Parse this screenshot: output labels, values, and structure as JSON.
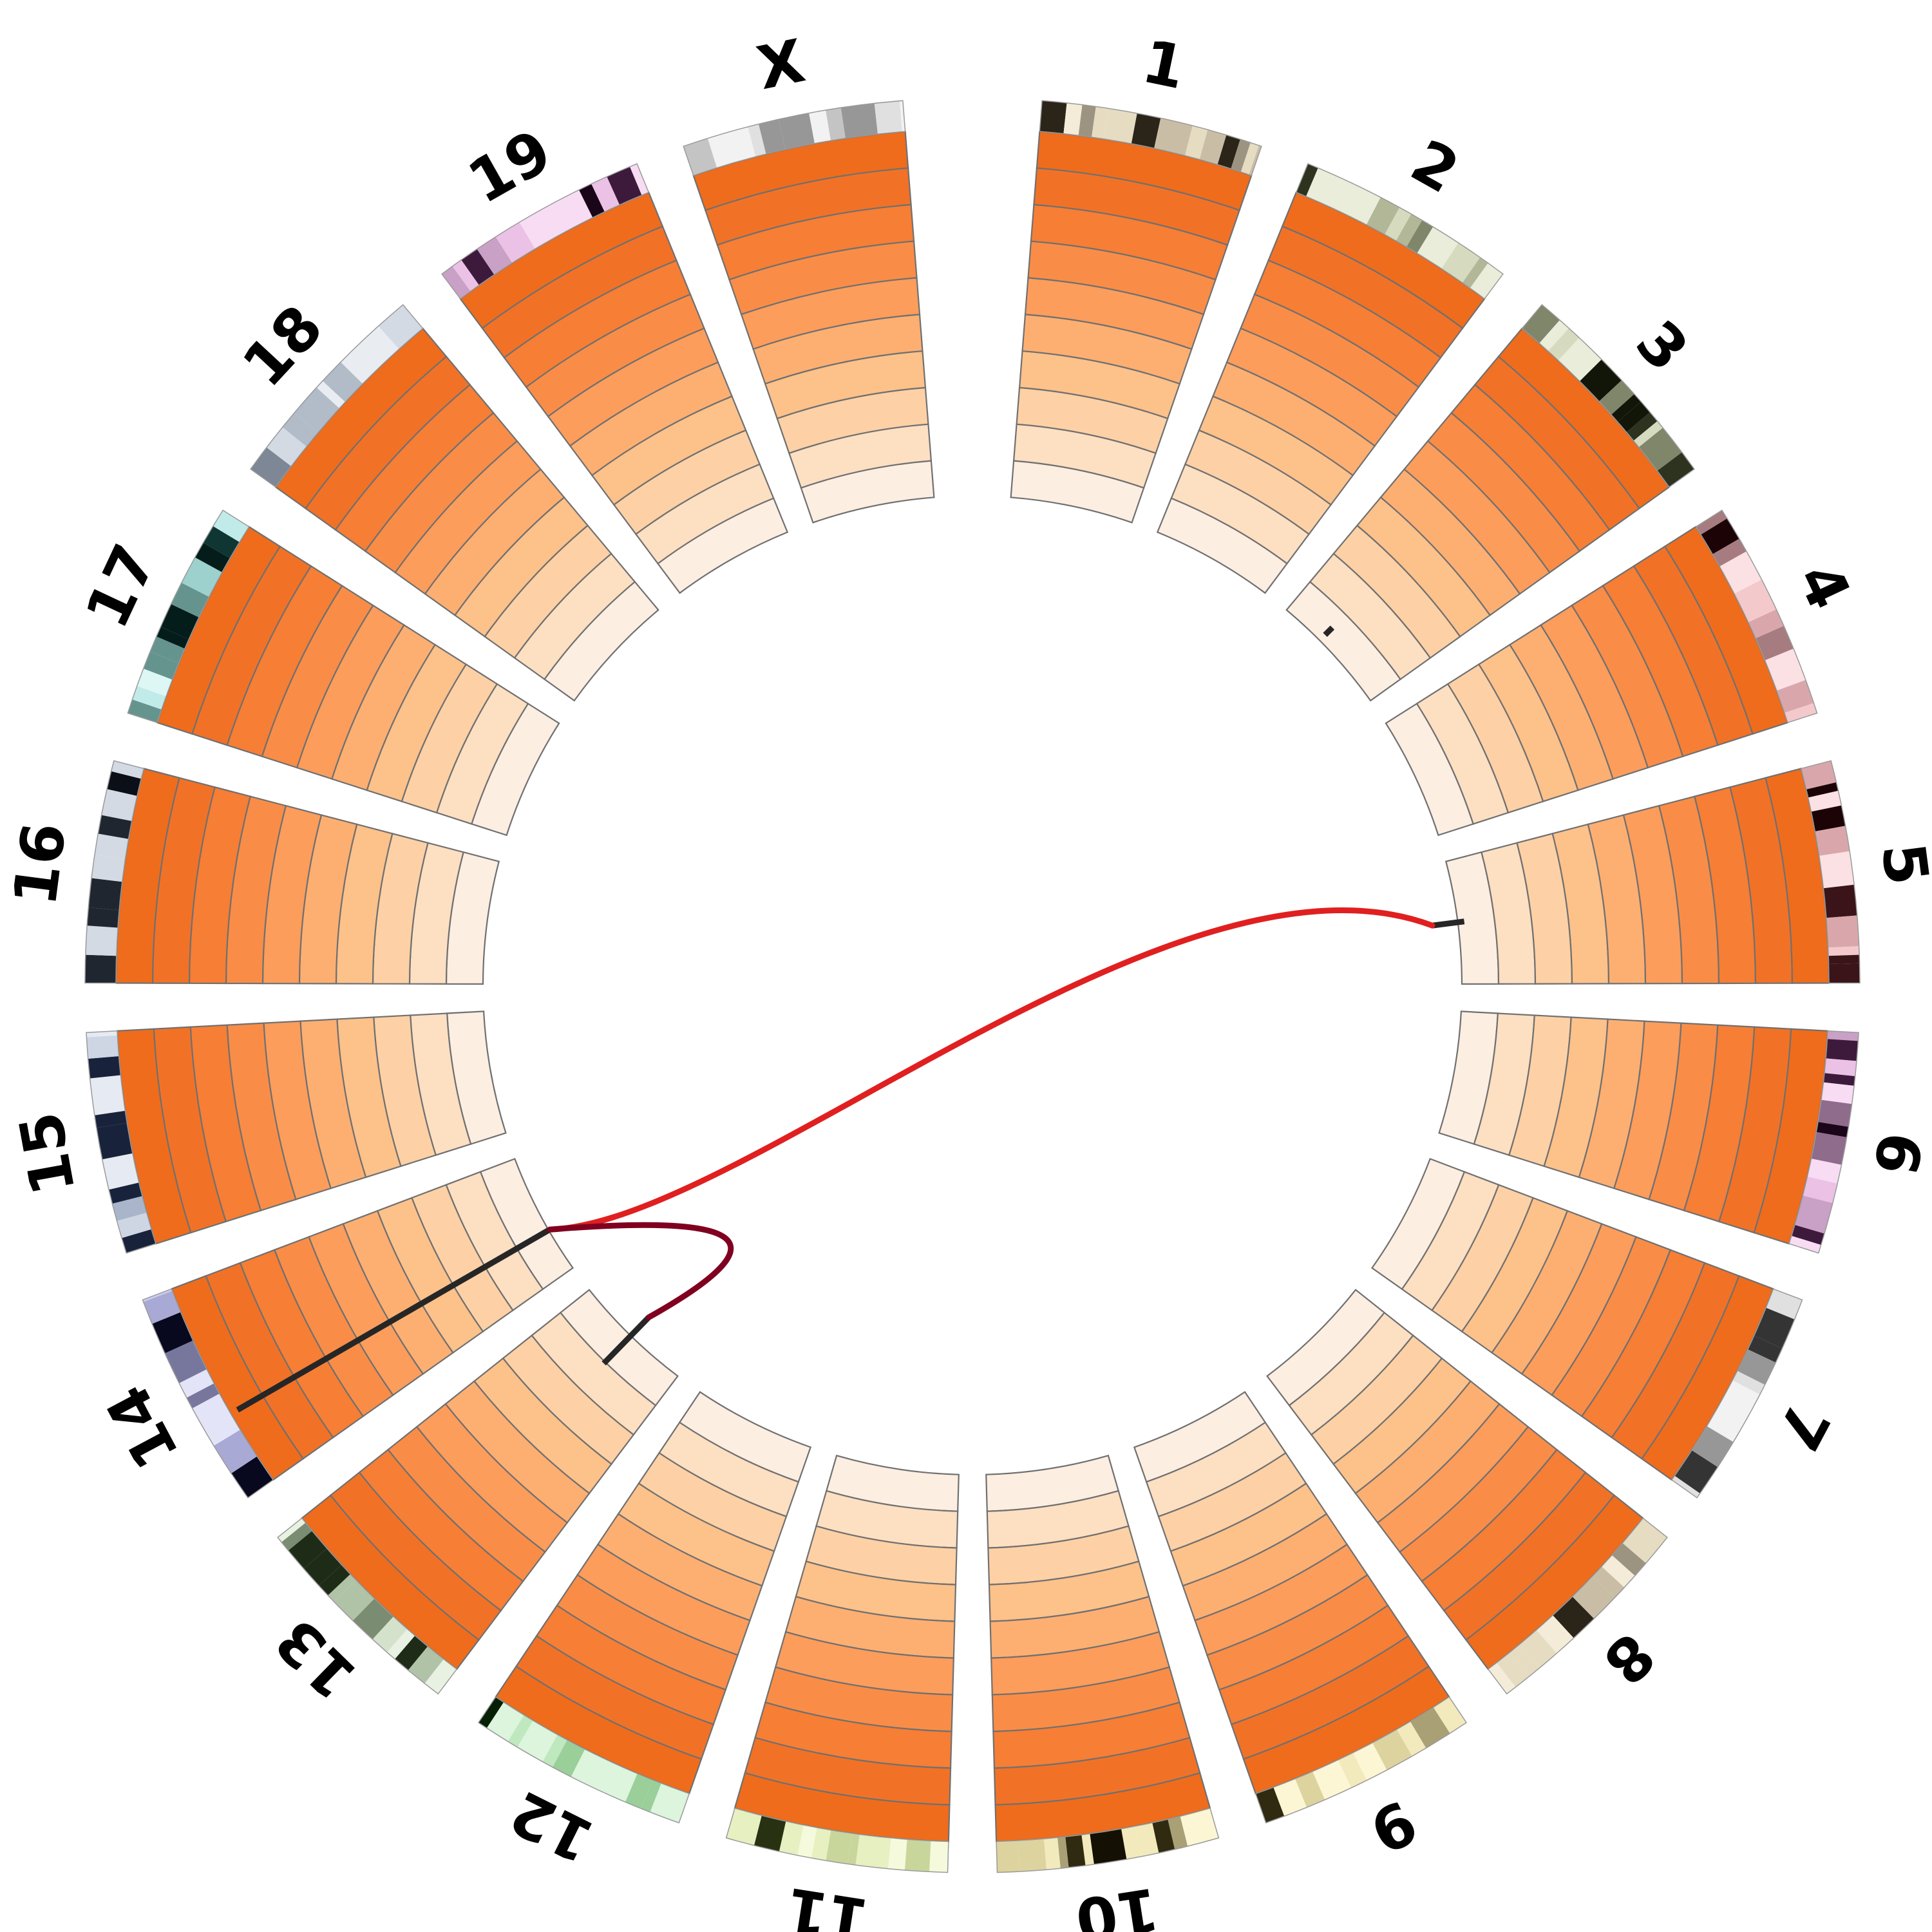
{
  "chromosomes": [
    {
      "id": "chr1",
      "label": "1",
      "palette": "beige"
    },
    {
      "id": "chr2",
      "label": "2",
      "palette": "olive"
    },
    {
      "id": "chr3",
      "label": "3",
      "palette": "olive"
    },
    {
      "id": "chr4",
      "label": "4",
      "palette": "rose"
    },
    {
      "id": "chr5",
      "label": "5",
      "palette": "rose"
    },
    {
      "id": "chr6",
      "label": "6",
      "palette": "violet"
    },
    {
      "id": "chr7",
      "label": "7",
      "palette": "grey"
    },
    {
      "id": "chr8",
      "label": "8",
      "palette": "beige"
    },
    {
      "id": "chr9",
      "label": "9",
      "palette": "cream"
    },
    {
      "id": "chr10",
      "label": "10",
      "palette": "cream"
    },
    {
      "id": "chr11",
      "label": "11",
      "palette": "lime"
    },
    {
      "id": "chr12",
      "label": "12",
      "palette": "green"
    },
    {
      "id": "chr13",
      "label": "13",
      "palette": "sage"
    },
    {
      "id": "chr14",
      "label": "14",
      "palette": "lavender"
    },
    {
      "id": "chr15",
      "label": "15",
      "palette": "navy"
    },
    {
      "id": "chr16",
      "label": "16",
      "palette": "slate"
    },
    {
      "id": "chr17",
      "label": "17",
      "palette": "teal"
    },
    {
      "id": "chr18",
      "label": "18",
      "palette": "slate"
    },
    {
      "id": "chr19",
      "label": "19",
      "palette": "violet"
    },
    {
      "id": "chrX",
      "label": "X",
      "palette": "grey"
    }
  ],
  "colors": {
    "heat_rings": [
      "#fdeee2",
      "#fddfc2",
      "#fdd1a5",
      "#fdc18a",
      "#fdaf72",
      "#fc9d5c",
      "#f98d47",
      "#f67e35",
      "#f17227",
      "#ef6c1c"
    ],
    "ring_border": "#707070",
    "palettes": {
      "beige": [
        "#f4ecd8",
        "#e6dcc2",
        "#c9bea5",
        "#9c9480",
        "#2b2418",
        "#140f08"
      ],
      "olive": [
        "#eaedda",
        "#d6dbbf",
        "#b2b897",
        "#80866a",
        "#2e3320",
        "#121608"
      ],
      "rose": [
        "#fbe1e3",
        "#f3c9cc",
        "#d9a7ab",
        "#a77c80",
        "#3a1418",
        "#1c0406"
      ],
      "violet": [
        "#f7dcf3",
        "#ebc1e6",
        "#c9a0c6",
        "#8f6b8c",
        "#3d1a3b",
        "#1a0519"
      ],
      "grey": [
        "#f2f2f2",
        "#e0e0e0",
        "#c4c4c4",
        "#979797",
        "#343434",
        "#151515"
      ],
      "cream": [
        "#fcf6d4",
        "#f2eabc",
        "#ddd39e",
        "#a9a075",
        "#2f2a10",
        "#141003"
      ],
      "lime": [
        "#f5fadc",
        "#e6f0c0",
        "#c8d69c",
        "#8e9c65",
        "#283212",
        "#101805"
      ],
      "green": [
        "#dcf5dc",
        "#bfe8bf",
        "#9acf9a",
        "#5f915f",
        "#143a14",
        "#062006"
      ],
      "sage": [
        "#e9f2e2",
        "#d4e2cb",
        "#b1c3a7",
        "#7a8c71",
        "#1e2c17",
        "#0a1506"
      ],
      "lavender": [
        "#e4e4f8",
        "#cdcdef",
        "#a9a9d5",
        "#77779e",
        "#1c1c3c",
        "#08081e"
      ],
      "navy": [
        "#e6eaf2",
        "#ced6e4",
        "#a9b5ca",
        "#74839c",
        "#18223a",
        "#070d1e"
      ],
      "slate": [
        "#e9edf2",
        "#d3dae3",
        "#b2bbc8",
        "#7d8795",
        "#1f2630",
        "#0b1018"
      ],
      "teal": [
        "#ddf7f5",
        "#c1ebe8",
        "#9dd1cd",
        "#65948f",
        "#103633",
        "#041d1a"
      ]
    },
    "link_primary": "#e02020",
    "link_secondary": "#800020",
    "highlight_mark": "#262626"
  },
  "links": [
    {
      "from": "chr14",
      "to": "chr5",
      "color": "#e02020"
    },
    {
      "from": "chr14",
      "to": "chr13",
      "color": "#800020"
    }
  ]
}
